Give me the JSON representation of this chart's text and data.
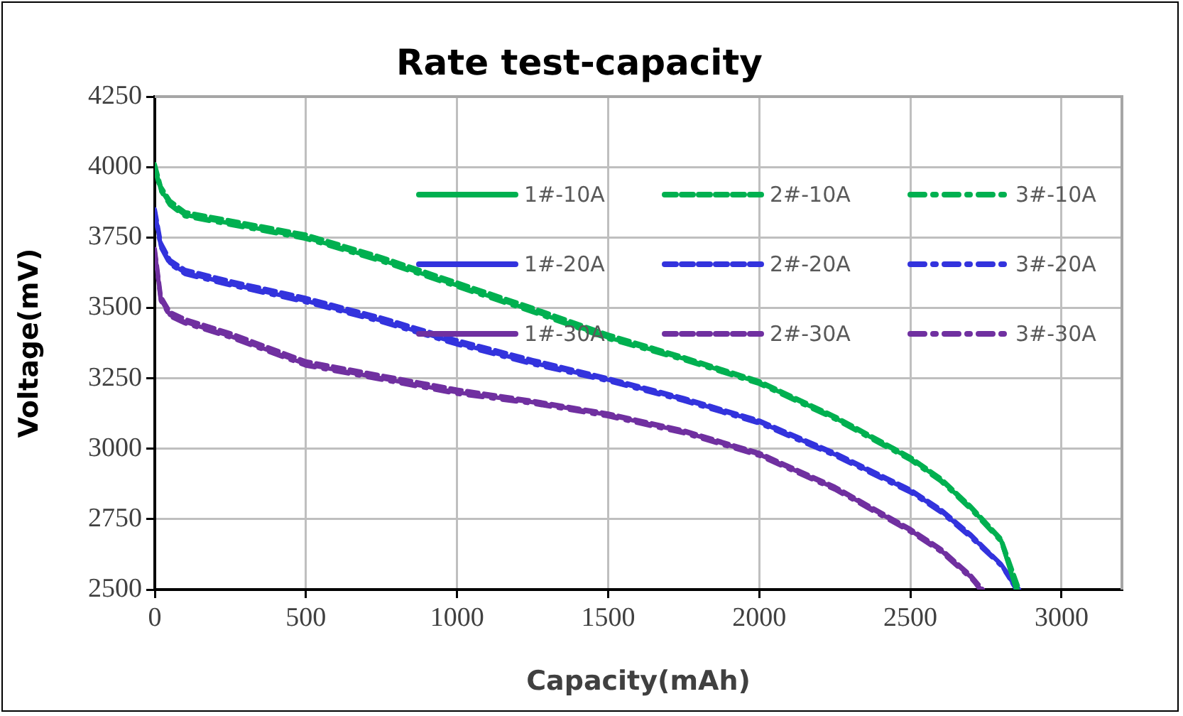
{
  "chart_data": {
    "type": "line",
    "title": "Rate test-capacity",
    "xlabel": "Capacity(mAh)",
    "ylabel": "Voltage(mV)",
    "xlim": [
      0,
      3200
    ],
    "xticks": [
      0,
      500,
      1000,
      1500,
      2000,
      2500,
      3000
    ],
    "ylim": [
      2500,
      4250
    ],
    "yticks": [
      2500,
      2750,
      3000,
      3250,
      3500,
      3750,
      4000,
      4250
    ],
    "grid": true,
    "legend": "top right",
    "marker": "none",
    "series": [
      {
        "name": "1#-10A",
        "color": "#00b050",
        "line_style": "solid",
        "x": [
          0,
          20,
          50,
          100,
          250,
          500,
          750,
          1000,
          1250,
          1500,
          1750,
          2000,
          2250,
          2500,
          2600,
          2700,
          2800,
          2850
        ],
        "values": [
          4000,
          3920,
          3870,
          3830,
          3800,
          3750,
          3670,
          3580,
          3490,
          3395,
          3320,
          3235,
          3110,
          2965,
          2890,
          2790,
          2675,
          2500
        ]
      },
      {
        "name": "2#-10A",
        "color": "#00b050",
        "line_style": "dashed",
        "x": [
          0,
          20,
          50,
          100,
          250,
          500,
          750,
          1000,
          1250,
          1500,
          1750,
          2000,
          2250,
          2500,
          2600,
          2700,
          2800,
          2860
        ],
        "values": [
          4010,
          3930,
          3880,
          3840,
          3810,
          3760,
          3680,
          3590,
          3500,
          3405,
          3325,
          3240,
          3115,
          2970,
          2895,
          2795,
          2680,
          2500
        ]
      },
      {
        "name": "3#-10A",
        "color": "#00b050",
        "line_style": "dashdot",
        "x": [
          0,
          20,
          50,
          100,
          250,
          500,
          750,
          1000,
          1250,
          1500,
          1750,
          2000,
          2250,
          2500,
          2600,
          2700,
          2800,
          2855
        ],
        "values": [
          3990,
          3915,
          3865,
          3825,
          3795,
          3745,
          3665,
          3575,
          3485,
          3390,
          3315,
          3230,
          3105,
          2960,
          2885,
          2785,
          2670,
          2500
        ]
      },
      {
        "name": "1#-20A",
        "color": "#3333dd",
        "line_style": "solid",
        "x": [
          0,
          20,
          50,
          100,
          250,
          500,
          750,
          1000,
          1250,
          1500,
          1750,
          2000,
          2250,
          2500,
          2600,
          2700,
          2800,
          2860
        ],
        "values": [
          3840,
          3720,
          3660,
          3625,
          3585,
          3525,
          3455,
          3375,
          3305,
          3245,
          3175,
          3095,
          2980,
          2850,
          2780,
          2690,
          2590,
          2500
        ]
      },
      {
        "name": "2#-20A",
        "color": "#3333dd",
        "line_style": "dashed",
        "x": [
          0,
          20,
          50,
          100,
          250,
          500,
          750,
          1000,
          1250,
          1500,
          1750,
          2000,
          2250,
          2500,
          2600,
          2700,
          2800,
          2850
        ],
        "values": [
          3850,
          3730,
          3670,
          3635,
          3595,
          3535,
          3465,
          3385,
          3315,
          3250,
          3180,
          3100,
          2985,
          2855,
          2785,
          2695,
          2590,
          2500
        ]
      },
      {
        "name": "3#-20A",
        "color": "#3333dd",
        "line_style": "dashdot",
        "x": [
          0,
          20,
          50,
          100,
          250,
          500,
          750,
          1000,
          1250,
          1500,
          1750,
          2000,
          2250,
          2500,
          2600,
          2700,
          2800,
          2855
        ],
        "values": [
          3830,
          3715,
          3655,
          3620,
          3580,
          3520,
          3450,
          3370,
          3300,
          3240,
          3170,
          3090,
          2975,
          2845,
          2775,
          2685,
          2585,
          2500
        ]
      },
      {
        "name": "1#-30A",
        "color": "#7030a0",
        "line_style": "solid",
        "x": [
          0,
          20,
          50,
          100,
          250,
          500,
          750,
          1000,
          1250,
          1500,
          1750,
          2000,
          2250,
          2500,
          2600,
          2700,
          2730
        ],
        "values": [
          3700,
          3530,
          3475,
          3450,
          3400,
          3300,
          3250,
          3200,
          3165,
          3120,
          3060,
          2980,
          2860,
          2710,
          2640,
          2545,
          2500
        ]
      },
      {
        "name": "2#-30A",
        "color": "#7030a0",
        "line_style": "dashed",
        "x": [
          0,
          20,
          50,
          100,
          250,
          500,
          750,
          1000,
          1250,
          1500,
          1750,
          2000,
          2250,
          2500,
          2600,
          2700,
          2740
        ],
        "values": [
          3710,
          3540,
          3485,
          3460,
          3410,
          3310,
          3260,
          3210,
          3170,
          3125,
          3065,
          2985,
          2865,
          2715,
          2645,
          2550,
          2500
        ]
      },
      {
        "name": "3#-30A",
        "color": "#7030a0",
        "line_style": "dashdot",
        "x": [
          0,
          20,
          50,
          100,
          250,
          500,
          750,
          1000,
          1250,
          1500,
          1750,
          2000,
          2250,
          2500,
          2600,
          2700,
          2735
        ],
        "values": [
          3690,
          3525,
          3470,
          3445,
          3395,
          3295,
          3245,
          3195,
          3160,
          3115,
          3055,
          2975,
          2855,
          2705,
          2635,
          2540,
          2500
        ]
      }
    ]
  }
}
